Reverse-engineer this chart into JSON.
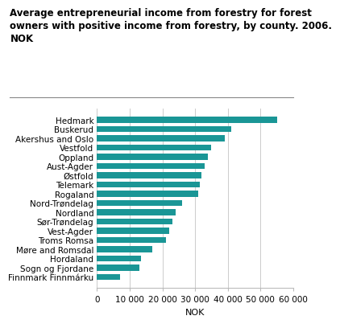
{
  "title_line1": "Average entrepreneurial income from forestry for forest",
  "title_line2": "owners with positive income from forestry, by county. 2006.",
  "title_line3": "NOK",
  "categories": [
    "Finnmark Finnmárku",
    "Sogn og Fjordane",
    "Hordaland",
    "Møre and Romsdal",
    "Troms Romsa",
    "Vest-Agder",
    "Sør-Trøndelag",
    "Nordland",
    "Nord-Trøndelag",
    "Rogaland",
    "Telemark",
    "Østfold",
    "Aust-Agder",
    "Oppland",
    "Vestfold",
    "Akershus and Oslo",
    "Buskerud",
    "Hedmark"
  ],
  "values": [
    7000,
    13000,
    13500,
    17000,
    21000,
    22000,
    23000,
    24000,
    26000,
    31000,
    31500,
    32000,
    33000,
    34000,
    35000,
    39000,
    41000,
    55000
  ],
  "bar_color": "#1a9696",
  "xlabel": "NOK",
  "xlim": [
    0,
    60000
  ],
  "xticks": [
    0,
    10000,
    20000,
    30000,
    40000,
    50000,
    60000
  ],
  "xtick_labels": [
    "0",
    "10 000",
    "20 000",
    "30 000",
    "40 000",
    "50 000",
    "60 000"
  ],
  "background_color": "#ffffff",
  "grid_color": "#cccccc",
  "title_fontsize": 8.5,
  "axis_fontsize": 8,
  "tick_fontsize": 7.5
}
